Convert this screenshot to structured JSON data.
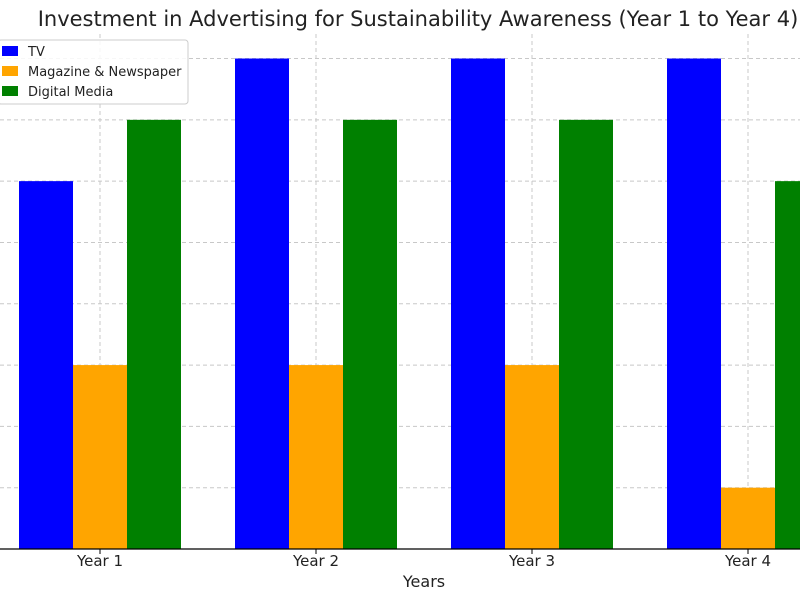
{
  "chart_data": {
    "type": "bar",
    "title": "Investment in Advertising for Sustainability Awareness (Year 1 to Year 4)",
    "xlabel": "Years",
    "ylabel": "",
    "categories": [
      "Year 1",
      "Year 2",
      "Year 3",
      "Year 4"
    ],
    "series": [
      {
        "name": "TV",
        "color": "#0000ff",
        "values": [
          6,
          8,
          8,
          8
        ]
      },
      {
        "name": "Magazine & Newspaper",
        "color": "#ffa500",
        "values": [
          3,
          3,
          3,
          1
        ]
      },
      {
        "name": "Digital Media",
        "color": "#008000",
        "values": [
          7,
          7,
          7,
          6
        ]
      }
    ],
    "ylim": [
      0,
      8.4
    ],
    "grid": true,
    "legend_position": "top-left"
  }
}
